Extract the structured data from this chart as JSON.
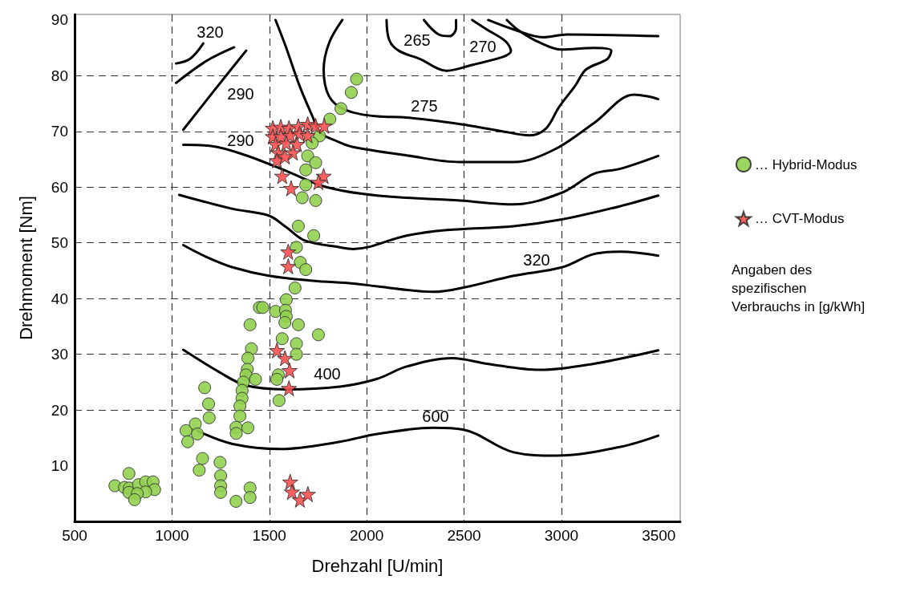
{
  "chart_data": {
    "type": "scatter",
    "xlabel": "Drehzahl [U/min]",
    "ylabel": "Drehmoment [Nm]",
    "xlim": [
      500,
      3610
    ],
    "xticks": [
      500,
      1000,
      1500,
      2000,
      2500,
      3000,
      3500
    ],
    "ylim": [
      0,
      91
    ],
    "yticks": [
      10,
      20,
      30,
      40,
      50,
      60,
      70,
      80,
      90
    ],
    "grid": true,
    "legend": "right",
    "annotations": [
      "320",
      "290",
      "290",
      "265",
      "270",
      "275",
      "320",
      "400",
      "600",
      "Angaben des\nspezifischen\nVerbrauchs in [g/kWh]"
    ],
    "series": [
      {
        "type": "line",
        "color": "#000000",
        "marker": "none",
        "line_style": "solid",
        "x": [
          1021,
          1092,
          1161
        ],
        "values": [
          82.2,
          83.0,
          85.8
        ]
      },
      {
        "type": "line",
        "color": "#000000",
        "marker": "none",
        "line_style": "solid",
        "x": [
          1021,
          1175,
          1319
        ],
        "values": [
          78.7,
          82.6,
          85.1
        ]
      },
      {
        "type": "line",
        "color": "#000000",
        "marker": "none",
        "line_style": "solid",
        "x": [
          1058,
          1216,
          1381
        ],
        "values": [
          70.3,
          77.3,
          84.5
        ]
      },
      {
        "type": "line",
        "color": "#000000",
        "marker": "none",
        "line_style": "solid",
        "x": [
          1058,
          1201,
          1381,
          1587,
          1793,
          2052,
          2480,
          2755,
          3002,
          3167,
          3303,
          3497
        ],
        "values": [
          67.6,
          67.4,
          65.7,
          62.9,
          60.0,
          58.5,
          57.6,
          56.9,
          59.0,
          62.4,
          63.3,
          65.6
        ]
      },
      {
        "type": "line",
        "color": "#000000",
        "marker": "none",
        "line_style": "solid",
        "x": [
          1532,
          1587,
          1655,
          1724,
          1760,
          1850,
          1930,
          2205,
          2480,
          2755,
          2961,
          3167,
          3373,
          3442,
          3497
        ],
        "values": [
          90,
          85,
          78.2,
          72.5,
          69.8,
          68.2,
          67.2,
          65.7,
          64.5,
          64.5,
          66.7,
          71.5,
          76.6,
          76.3,
          75.8
        ]
      },
      {
        "type": "line",
        "color": "#000000",
        "marker": "none",
        "line_style": "solid",
        "x": [
          1875,
          1807,
          1779,
          1807,
          1889,
          2054,
          2205,
          2480,
          2686,
          2837,
          2920,
          2988,
          3071,
          3126,
          3236,
          3256,
          3167,
          3002,
          2892,
          2782,
          2720
        ],
        "values": [
          90,
          85.9,
          81.1,
          76.3,
          73.9,
          72.7,
          72.5,
          71.3,
          70.1,
          69.3,
          70.5,
          74.4,
          78.2,
          81.1,
          83.0,
          84.5,
          85.0,
          84.7,
          85.9,
          88.1,
          90
        ]
      },
      {
        "type": "line",
        "color": "#000000",
        "marker": "none",
        "line_style": "solid",
        "x": [
          2102,
          2116,
          2164,
          2274,
          2411,
          2507,
          2741,
          2713,
          2617,
          2542
        ],
        "values": [
          90,
          86.4,
          84.5,
          83.0,
          80.9,
          81.6,
          84.5,
          86.2,
          88.3,
          90
        ]
      },
      {
        "type": "line",
        "color": "#000000",
        "marker": "none",
        "line_style": "solid",
        "x": [
          2294,
          2370,
          2425,
          2459,
          2459
        ],
        "values": [
          90,
          87.4,
          87.1,
          88.5,
          90
        ]
      },
      {
        "type": "line",
        "color": "#000000",
        "marker": "none",
        "line_style": "solid",
        "x": [
          2624,
          2755,
          2906,
          3029,
          3497
        ],
        "values": [
          90,
          88.3,
          86.9,
          87.4,
          87.1
        ]
      },
      {
        "type": "line",
        "color": "#000000",
        "marker": "none",
        "line_style": "solid",
        "x": [
          1037,
          1312,
          1497,
          1587,
          1683,
          1862,
          1930,
          2205,
          2411,
          2755,
          3002,
          3304,
          3497
        ],
        "values": [
          58.6,
          56.1,
          54.9,
          52.8,
          50.4,
          49.2,
          48.9,
          51.3,
          52.3,
          53.0,
          54.2,
          56.6,
          58.5
        ]
      },
      {
        "type": "line",
        "color": "#000000",
        "marker": "none",
        "line_style": "solid",
        "x": [
          1058,
          1175,
          1312,
          1497,
          1724,
          1930,
          2054,
          2343,
          2501,
          2755,
          3002,
          3167,
          3304,
          3497
        ],
        "values": [
          49.6,
          47.5,
          45.6,
          44.1,
          43.2,
          42.7,
          42.2,
          41.2,
          42.0,
          44.1,
          45.6,
          48.0,
          48.4,
          47.7
        ]
      },
      {
        "type": "line",
        "color": "#000000",
        "marker": "none",
        "line_style": "solid",
        "x": [
          1058,
          1243,
          1380,
          1587,
          1862,
          2054,
          2205,
          2439,
          2618,
          2892,
          3167,
          3497
        ],
        "values": [
          30.8,
          26.8,
          24.4,
          23.7,
          24.2,
          25.6,
          27.8,
          29.3,
          28.3,
          27.2,
          28.3,
          30.7
        ]
      },
      {
        "type": "line",
        "color": "#000000",
        "marker": "none",
        "line_style": "solid",
        "x": [
          1134,
          1312,
          1559,
          1862,
          2054,
          2343,
          2494,
          2755,
          2974,
          3304,
          3497
        ],
        "values": [
          16.2,
          13.9,
          13.0,
          14.3,
          15.7,
          16.8,
          16.5,
          12.4,
          11.8,
          13.4,
          15.4
        ]
      },
      {
        "name": "… Hybrid-Modus",
        "color": "#92d050",
        "marker": "circle",
        "x": [
          1948,
          1921,
          1868,
          1811,
          1758,
          1720,
          1697,
          1738,
          1687,
          1687,
          1669,
          1738,
          1649,
          1728,
          1639,
          1659,
          1687,
          1632,
          1587,
          1449,
          1466,
          1532,
          1583,
          1587,
          1580,
          1649,
          1401,
          1752,
          1566,
          1639,
          1639,
          1408,
          1390,
          1387,
          1380,
          1429,
          1367,
          1546,
          1539,
          1360,
          1360,
          1349,
          1349,
          1550,
          1168,
          1188,
          1191,
          1329,
          1330,
          1390,
          1072,
          1120,
          1131,
          1081,
          1157,
          1140,
          1247,
          1250,
          1250,
          1250,
          1401,
          1401,
          1329,
          779,
          707,
          756,
          781,
          779,
          828,
          865,
          903,
          911,
          865,
          822,
          808
        ],
        "values": [
          79.4,
          77.0,
          74.1,
          72.2,
          69.2,
          67.9,
          65.6,
          64.4,
          63.1,
          60.4,
          58.1,
          57.6,
          53.0,
          51.3,
          49.2,
          46.5,
          45.2,
          41.9,
          39.8,
          38.4,
          38.4,
          37.7,
          37.9,
          36.8,
          35.7,
          35.3,
          35.3,
          33.5,
          32.8,
          31.9,
          30.0,
          31.0,
          29.3,
          27.3,
          26.3,
          25.5,
          25.0,
          26.3,
          25.5,
          23.5,
          22.1,
          20.7,
          18.9,
          21.7,
          24.0,
          21.1,
          18.6,
          16.9,
          15.8,
          16.8,
          16.3,
          17.5,
          15.7,
          14.3,
          11.3,
          9.2,
          10.6,
          8.2,
          6.4,
          5.2,
          6.0,
          4.3,
          3.6,
          8.6,
          6.4,
          6.1,
          6.0,
          5.2,
          6.6,
          7.1,
          7.1,
          5.7,
          5.3,
          5.0,
          3.9
        ]
      },
      {
        "name": "… CVT-Modus",
        "color": "#ff5050",
        "marker": "star",
        "x": [
          1518,
          1559,
          1601,
          1649,
          1697,
          1738,
          1782,
          1518,
          1559,
          1607,
          1655,
          1697,
          1532,
          1587,
          1642,
          1546,
          1621,
          1539,
          1580,
          1566,
          1612,
          1779,
          1752,
          1597,
          1597,
          1539,
          1580,
          1604,
          1601,
          1607,
          1616,
          1657,
          1698
        ],
        "values": [
          70.6,
          70.8,
          70.6,
          70.9,
          71.3,
          71.0,
          71.0,
          69.1,
          69.1,
          69.3,
          69.6,
          69.3,
          67.7,
          67.9,
          67.7,
          66.2,
          66.2,
          64.8,
          65.5,
          62.0,
          59.8,
          62.0,
          60.9,
          48.4,
          45.8,
          30.7,
          29.3,
          27.1,
          23.9,
          7.1,
          5.3,
          3.9,
          4.9
        ]
      }
    ]
  }
}
